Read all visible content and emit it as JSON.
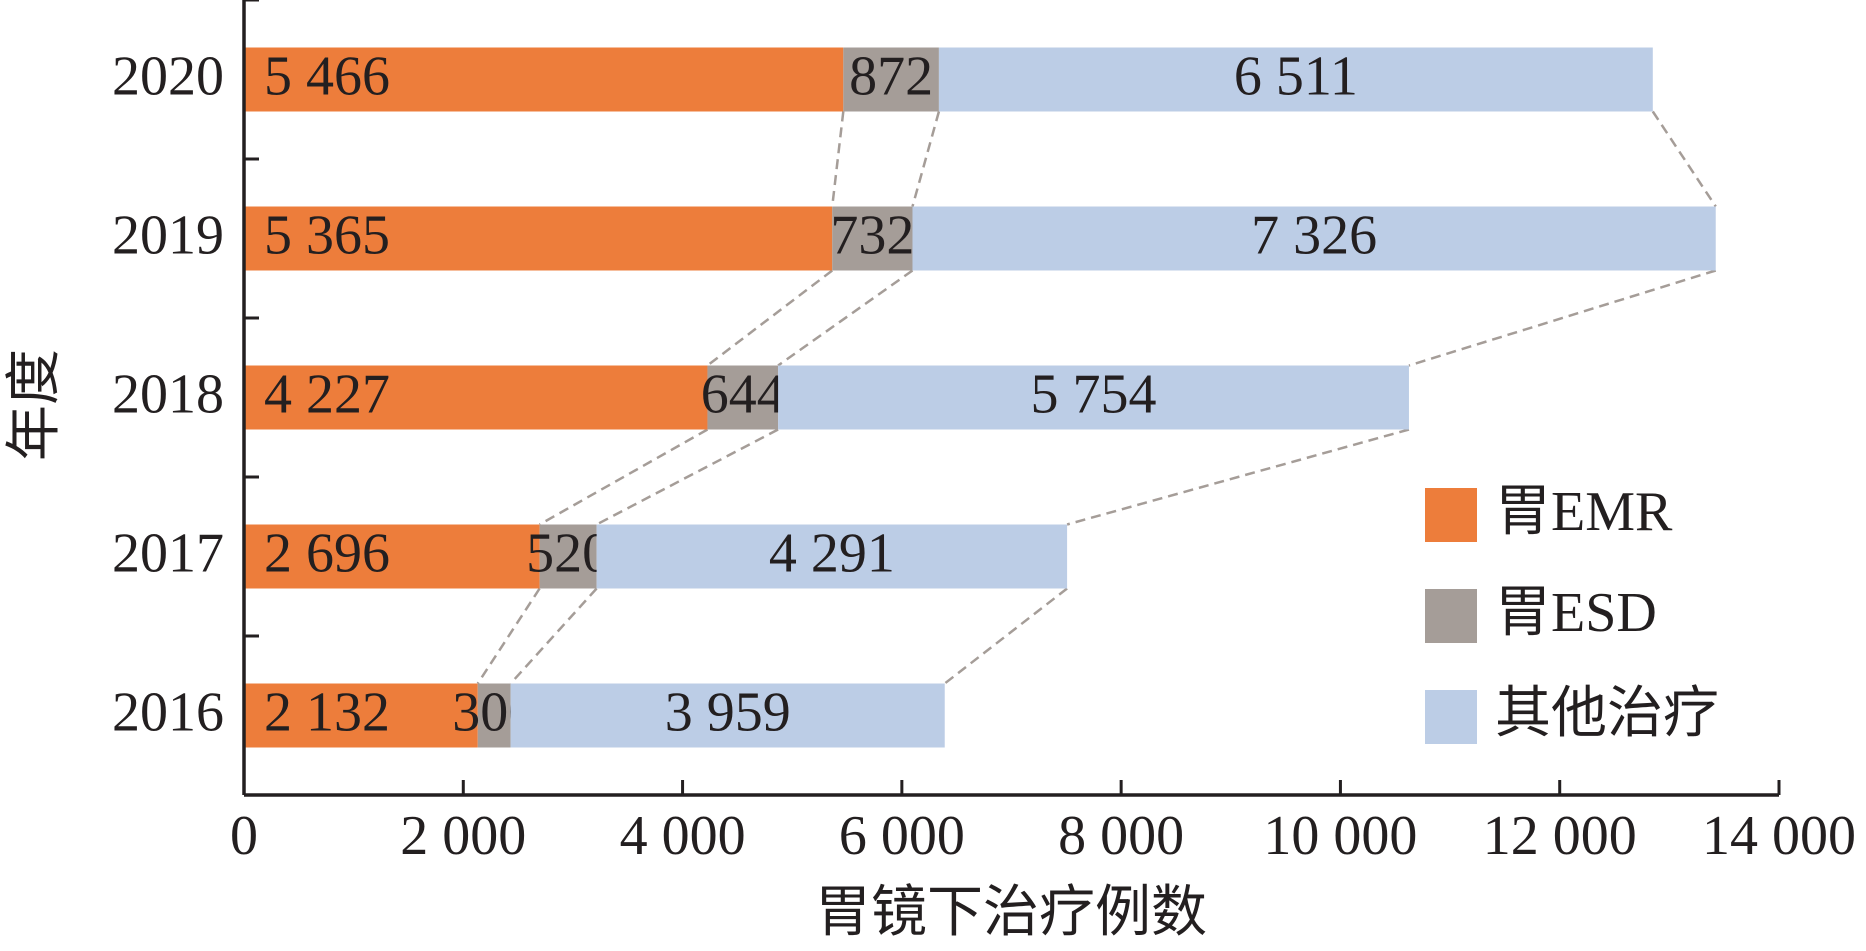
{
  "chart_data": {
    "type": "stacked-bar-horizontal",
    "y_label": "年度",
    "x_label": "胃镜下治疗例数",
    "categories": [
      "2020",
      "2019",
      "2018",
      "2017",
      "2016"
    ],
    "series": [
      {
        "name": "胃EMR",
        "color": "#ed7d3b",
        "values": [
          5466,
          5365,
          4227,
          2696,
          2132
        ],
        "value_labels": [
          "5 466",
          "5 365",
          "4 227",
          "2 696",
          "2 132"
        ]
      },
      {
        "name": "胃ESD",
        "color": "#a59d98",
        "values": [
          872,
          732,
          644,
          520,
          300
        ]
      },
      {
        "name": "其他治疗",
        "color": "#bccde6",
        "values": [
          6511,
          7326,
          5754,
          4291,
          3959
        ],
        "value_labels": [
          "6 511",
          "7 326",
          "5 754",
          "4 291",
          "3 959"
        ]
      }
    ],
    "xlim": [
      0,
      14000
    ],
    "xticks": [
      0,
      {
        "value": 2000,
        "label": "2 000"
      },
      {
        "value": 4000,
        "label": "4 000"
      },
      {
        "value": 6000,
        "label": "6 000"
      },
      {
        "value": 8000,
        "label": "8 000"
      },
      {
        "value": 10000,
        "label": "10 000"
      },
      {
        "value": 12000,
        "label": "12 000"
      },
      {
        "value": 14000,
        "label": "14 000"
      }
    ],
    "legend": "right"
  }
}
